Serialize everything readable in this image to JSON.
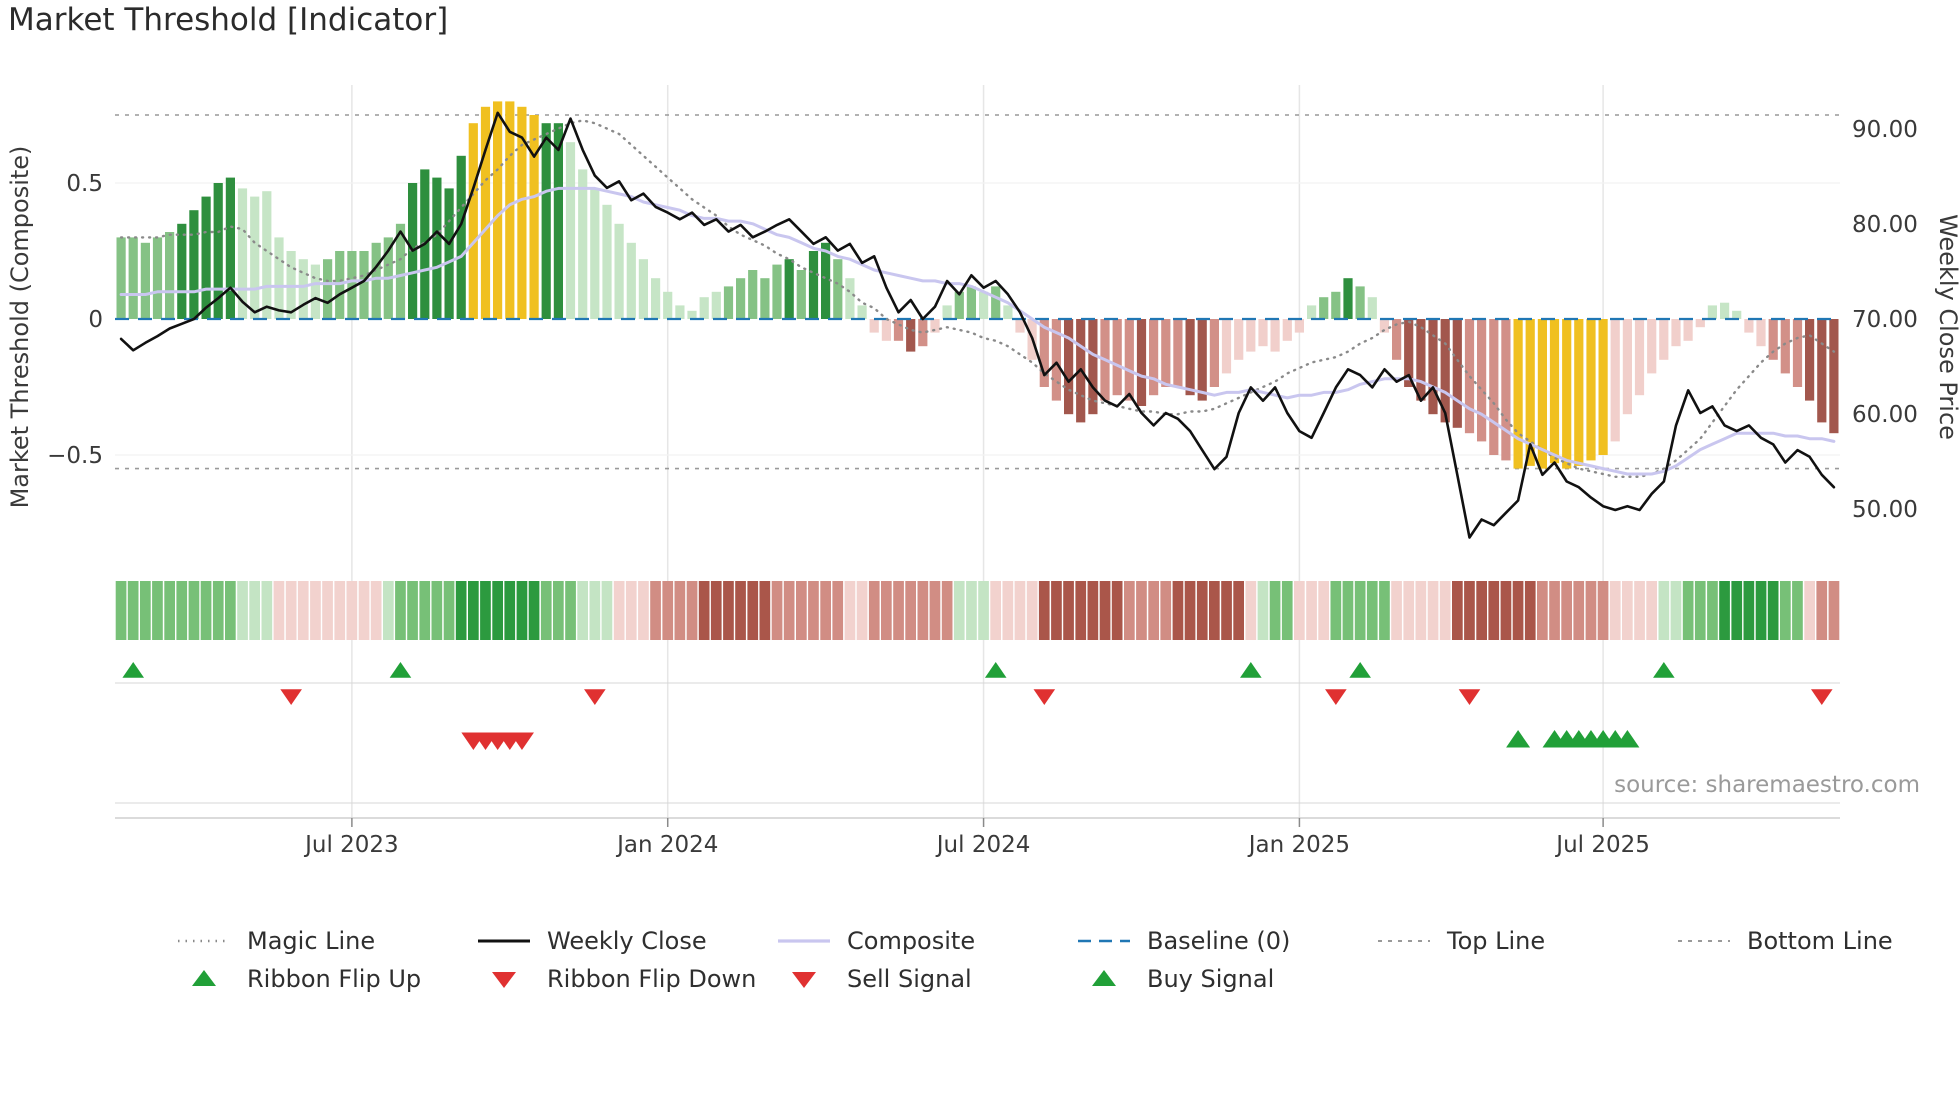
{
  "chart_data": {
    "type": "combo",
    "title": "Market Threshold [Indicator]",
    "source_note": "source: sharemaestro.com",
    "left_axis": {
      "label": "Market Threshold (Composite)",
      "tick_labels": [
        "0.5",
        "0",
        "−0.5"
      ],
      "tick_values": [
        0.5,
        0,
        -0.5
      ],
      "range": [
        -0.86,
        0.86
      ]
    },
    "right_axis": {
      "label": "Weekly Close Price",
      "tick_labels": [
        "90.00",
        "80.00",
        "70.00",
        "60.00",
        "50.00"
      ],
      "tick_values": [
        90,
        80,
        70,
        60,
        50
      ],
      "range": [
        43.6,
        94.6
      ]
    },
    "x_axis": {
      "tick_labels": [
        "Jul 2023",
        "Jan 2024",
        "Jul 2024",
        "Jan 2025",
        "Jul 2025"
      ],
      "tick_week_indices": [
        19,
        45,
        71,
        97,
        122
      ]
    },
    "threshold_lines": {
      "top_line": 0.75,
      "baseline": 0,
      "bottom_line": -0.55
    },
    "n_weeks": 142,
    "series": {
      "composite_bars": [
        0.3,
        0.3,
        0.28,
        0.3,
        0.32,
        0.35,
        0.4,
        0.45,
        0.5,
        0.52,
        0.48,
        0.45,
        0.47,
        0.3,
        0.25,
        0.22,
        0.2,
        0.22,
        0.25,
        0.25,
        0.25,
        0.28,
        0.3,
        0.35,
        0.5,
        0.55,
        0.52,
        0.48,
        0.6,
        0.72,
        0.78,
        0.8,
        0.8,
        0.78,
        0.75,
        0.72,
        0.72,
        0.65,
        0.55,
        0.48,
        0.42,
        0.35,
        0.28,
        0.22,
        0.15,
        0.1,
        0.05,
        0.03,
        0.08,
        0.1,
        0.12,
        0.15,
        0.18,
        0.15,
        0.2,
        0.22,
        0.18,
        0.25,
        0.28,
        0.22,
        0.15,
        0.05,
        -0.05,
        -0.08,
        -0.08,
        -0.12,
        -0.1,
        -0.05,
        0.05,
        0.1,
        0.12,
        0.1,
        0.12,
        0.05,
        -0.05,
        -0.15,
        -0.25,
        -0.3,
        -0.35,
        -0.38,
        -0.35,
        -0.3,
        -0.28,
        -0.3,
        -0.32,
        -0.28,
        -0.25,
        -0.25,
        -0.28,
        -0.3,
        -0.25,
        -0.2,
        -0.15,
        -0.12,
        -0.1,
        -0.12,
        -0.08,
        -0.05,
        0.05,
        0.08,
        0.1,
        0.15,
        0.12,
        0.08,
        -0.05,
        -0.15,
        -0.25,
        -0.3,
        -0.35,
        -0.38,
        -0.4,
        -0.42,
        -0.45,
        -0.5,
        -0.52,
        -0.55,
        -0.54,
        -0.55,
        -0.53,
        -0.55,
        -0.54,
        -0.52,
        -0.5,
        -0.45,
        -0.35,
        -0.28,
        -0.2,
        -0.15,
        -0.1,
        -0.08,
        -0.03,
        0.05,
        0.06,
        0.03,
        -0.05,
        -0.1,
        -0.15,
        -0.2,
        -0.25,
        -0.3,
        -0.38,
        -0.42
      ],
      "bar_shades": [
        2,
        2,
        2,
        2,
        2,
        3,
        3,
        3,
        3,
        3,
        1,
        1,
        1,
        1,
        1,
        1,
        1,
        2,
        2,
        2,
        2,
        2,
        2,
        2,
        3,
        3,
        3,
        3,
        3,
        0,
        0,
        0,
        0,
        0,
        0,
        3,
        3,
        1,
        1,
        1,
        1,
        1,
        1,
        1,
        1,
        1,
        1,
        1,
        1,
        1,
        2,
        2,
        2,
        2,
        2,
        3,
        2,
        3,
        3,
        2,
        1,
        1,
        1,
        1,
        2,
        3,
        2,
        1,
        1,
        2,
        2,
        1,
        2,
        1,
        1,
        1,
        2,
        2,
        3,
        3,
        3,
        2,
        2,
        2,
        3,
        2,
        2,
        2,
        3,
        3,
        2,
        1,
        1,
        1,
        1,
        1,
        1,
        1,
        1,
        2,
        2,
        3,
        2,
        1,
        1,
        2,
        3,
        3,
        3,
        3,
        3,
        2,
        2,
        2,
        2,
        0,
        0,
        0,
        0,
        0,
        0,
        0,
        0,
        1,
        1,
        1,
        1,
        1,
        1,
        1,
        1,
        1,
        1,
        1,
        1,
        1,
        2,
        2,
        2,
        3,
        3,
        3
      ],
      "bar_extreme_ranges": [
        [
          29,
          34
        ],
        [
          115,
          122
        ]
      ],
      "weekly_close": [
        67.9,
        66.7,
        67.5,
        68.2,
        69.0,
        69.5,
        70.0,
        71.2,
        72.2,
        73.3,
        71.8,
        70.7,
        71.3,
        70.9,
        70.7,
        71.5,
        72.2,
        71.7,
        72.6,
        73.3,
        74.0,
        75.5,
        77.2,
        79.2,
        77.2,
        77.9,
        79.2,
        77.9,
        80.0,
        83.8,
        87.8,
        91.7,
        89.7,
        89.1,
        87.1,
        89.1,
        87.8,
        91.1,
        87.8,
        85.1,
        83.8,
        84.5,
        82.5,
        83.2,
        81.8,
        81.2,
        80.5,
        81.2,
        79.9,
        80.5,
        79.2,
        79.9,
        78.6,
        79.2,
        79.9,
        80.5,
        79.2,
        77.9,
        78.6,
        77.2,
        77.9,
        75.9,
        76.6,
        73.3,
        70.7,
        72.0,
        70.0,
        71.3,
        74.0,
        72.6,
        74.6,
        73.3,
        74.0,
        72.6,
        70.7,
        68.0,
        64.1,
        65.4,
        63.4,
        64.7,
        62.8,
        61.4,
        60.8,
        62.1,
        60.1,
        58.8,
        60.1,
        59.5,
        58.2,
        56.2,
        54.2,
        55.5,
        60.1,
        62.8,
        61.4,
        62.8,
        60.1,
        58.2,
        57.5,
        60.1,
        62.8,
        64.7,
        64.1,
        62.8,
        64.7,
        63.4,
        64.1,
        61.4,
        62.8,
        60.1,
        53.6,
        47.0,
        48.9,
        48.3,
        49.6,
        50.9,
        56.8,
        53.6,
        54.9,
        52.9,
        52.3,
        51.2,
        50.3,
        49.9,
        50.3,
        49.9,
        51.6,
        52.9,
        58.8,
        62.5,
        60.1,
        60.8,
        58.8,
        58.2,
        58.8,
        57.5,
        56.8,
        54.9,
        56.2,
        55.5,
        53.6,
        52.3
      ],
      "composite_line": [
        0.09,
        0.09,
        0.09,
        0.1,
        0.1,
        0.1,
        0.1,
        0.11,
        0.11,
        0.11,
        0.11,
        0.11,
        0.12,
        0.12,
        0.12,
        0.12,
        0.13,
        0.13,
        0.13,
        0.14,
        0.14,
        0.15,
        0.15,
        0.16,
        0.17,
        0.18,
        0.19,
        0.21,
        0.23,
        0.28,
        0.33,
        0.38,
        0.42,
        0.44,
        0.45,
        0.47,
        0.48,
        0.48,
        0.48,
        0.48,
        0.47,
        0.46,
        0.45,
        0.43,
        0.42,
        0.41,
        0.4,
        0.38,
        0.37,
        0.37,
        0.36,
        0.36,
        0.35,
        0.33,
        0.31,
        0.3,
        0.28,
        0.26,
        0.25,
        0.23,
        0.22,
        0.2,
        0.18,
        0.17,
        0.16,
        0.15,
        0.14,
        0.14,
        0.13,
        0.13,
        0.12,
        0.1,
        0.08,
        0.06,
        0.03,
        0.0,
        -0.03,
        -0.05,
        -0.07,
        -0.1,
        -0.13,
        -0.15,
        -0.17,
        -0.19,
        -0.21,
        -0.22,
        -0.24,
        -0.25,
        -0.26,
        -0.27,
        -0.28,
        -0.27,
        -0.27,
        -0.26,
        -0.27,
        -0.28,
        -0.29,
        -0.28,
        -0.28,
        -0.27,
        -0.27,
        -0.26,
        -0.24,
        -0.23,
        -0.22,
        -0.22,
        -0.22,
        -0.23,
        -0.25,
        -0.27,
        -0.3,
        -0.33,
        -0.35,
        -0.38,
        -0.41,
        -0.44,
        -0.46,
        -0.48,
        -0.5,
        -0.52,
        -0.53,
        -0.54,
        -0.55,
        -0.56,
        -0.57,
        -0.57,
        -0.57,
        -0.56,
        -0.54,
        -0.51,
        -0.48,
        -0.46,
        -0.44,
        -0.42,
        -0.42,
        -0.42,
        -0.42,
        -0.43,
        -0.43,
        -0.44,
        -0.44,
        -0.45
      ],
      "magic_line": [
        0.3,
        0.3,
        0.3,
        0.3,
        0.31,
        0.31,
        0.31,
        0.32,
        0.32,
        0.34,
        0.33,
        0.28,
        0.25,
        0.22,
        0.19,
        0.17,
        0.15,
        0.14,
        0.14,
        0.15,
        0.16,
        0.18,
        0.2,
        0.22,
        0.26,
        0.28,
        0.31,
        0.36,
        0.41,
        0.46,
        0.51,
        0.55,
        0.6,
        0.64,
        0.66,
        0.68,
        0.7,
        0.72,
        0.73,
        0.72,
        0.7,
        0.68,
        0.64,
        0.6,
        0.56,
        0.52,
        0.48,
        0.44,
        0.41,
        0.38,
        0.34,
        0.31,
        0.29,
        0.27,
        0.24,
        0.22,
        0.19,
        0.17,
        0.15,
        0.13,
        0.1,
        0.06,
        0.04,
        0.0,
        -0.02,
        -0.04,
        -0.05,
        -0.04,
        -0.03,
        -0.04,
        -0.05,
        -0.07,
        -0.08,
        -0.1,
        -0.13,
        -0.16,
        -0.2,
        -0.23,
        -0.26,
        -0.28,
        -0.3,
        -0.31,
        -0.32,
        -0.33,
        -0.34,
        -0.34,
        -0.35,
        -0.35,
        -0.34,
        -0.34,
        -0.33,
        -0.31,
        -0.29,
        -0.27,
        -0.25,
        -0.23,
        -0.2,
        -0.18,
        -0.16,
        -0.15,
        -0.14,
        -0.12,
        -0.09,
        -0.07,
        -0.04,
        -0.02,
        -0.01,
        -0.03,
        -0.06,
        -0.09,
        -0.15,
        -0.21,
        -0.26,
        -0.31,
        -0.37,
        -0.42,
        -0.45,
        -0.48,
        -0.51,
        -0.53,
        -0.55,
        -0.56,
        -0.57,
        -0.58,
        -0.58,
        -0.58,
        -0.57,
        -0.55,
        -0.52,
        -0.48,
        -0.44,
        -0.38,
        -0.32,
        -0.26,
        -0.21,
        -0.16,
        -0.12,
        -0.09,
        -0.07,
        -0.06,
        -0.09,
        -0.12
      ]
    },
    "ribbon": [
      2,
      2,
      2,
      2,
      2,
      2,
      2,
      2,
      2,
      2,
      1,
      1,
      1,
      -1,
      -1,
      -1,
      -1,
      -1,
      -1,
      -1,
      -1,
      -1,
      1,
      2,
      2,
      2,
      2,
      2,
      3,
      3,
      3,
      3,
      3,
      3,
      3,
      2,
      2,
      2,
      1,
      1,
      1,
      -1,
      -1,
      -1,
      -2,
      -2,
      -2,
      -2,
      -3,
      -3,
      -3,
      -3,
      -3,
      -3,
      -2,
      -2,
      -2,
      -2,
      -2,
      -2,
      -1,
      -1,
      -2,
      -2,
      -2,
      -2,
      -2,
      -2,
      -2,
      1,
      1,
      1,
      -1,
      -1,
      -1,
      -1,
      -3,
      -3,
      -3,
      -3,
      -3,
      -3,
      -3,
      -2,
      -2,
      -2,
      -2,
      -3,
      -3,
      -3,
      -3,
      -3,
      -3,
      -1,
      1,
      2,
      2,
      -1,
      -1,
      -1,
      2,
      2,
      2,
      2,
      2,
      -1,
      -1,
      -1,
      -1,
      -1,
      -3,
      -3,
      -3,
      -3,
      -3,
      -3,
      -3,
      -2,
      -2,
      -2,
      -2,
      -2,
      -2,
      -1,
      -1,
      -1,
      -1,
      1,
      1,
      2,
      2,
      2,
      3,
      3,
      3,
      3,
      3,
      2,
      2,
      -1,
      -2,
      -2
    ],
    "signals": {
      "ribbon_flip_up": [
        1,
        23,
        72,
        93,
        102,
        127
      ],
      "ribbon_flip_down": [
        14,
        39,
        76,
        100,
        111,
        140
      ],
      "sell": [
        29,
        30,
        31,
        32,
        33
      ],
      "buy": [
        115,
        118,
        119,
        120,
        121,
        122,
        123,
        124
      ]
    },
    "colors": {
      "bar_green": {
        "light": "#c6e5c6",
        "medium": "#85c285",
        "dark": "#2e8f3e"
      },
      "bar_red": {
        "light": "#f1cfcb",
        "medium": "#d29088",
        "dark": "#a2574d"
      },
      "bar_extreme": "#f0c020",
      "ribbon_green": {
        "light": "#c4e4c4",
        "medium": "#77c077",
        "dark": "#2c9a3f"
      },
      "ribbon_red": {
        "light": "#f2d2ce",
        "medium": "#d18d84",
        "dark": "#aa564a"
      },
      "weekly_close": "#111111",
      "composite_line": "#c9c6ef",
      "magic_line": "#8a8a8a",
      "baseline": "#2077b4",
      "threshold": "#999999",
      "signal_green": "#21a038",
      "signal_red": "#e03131",
      "grid": "#e6e6e6",
      "axis_text": "#3a3a3a",
      "source_text": "#9a9a9a"
    }
  },
  "legend": {
    "rows": [
      [
        {
          "label": "Magic Line",
          "swatch": "line-dotted-gray"
        },
        {
          "label": "Weekly Close",
          "swatch": "line-solid-black"
        },
        {
          "label": "Composite",
          "swatch": "line-solid-lavender"
        },
        {
          "label": "Baseline (0)",
          "swatch": "line-dashed-blue"
        },
        {
          "label": "Top Line",
          "swatch": "line-dashed-gray"
        },
        {
          "label": "Bottom Line",
          "swatch": "line-dashed-gray"
        }
      ],
      [
        {
          "label": "Ribbon Flip Up",
          "swatch": "triangle-up-green"
        },
        {
          "label": "Ribbon Flip Down",
          "swatch": "triangle-down-red"
        },
        {
          "label": "Sell Signal",
          "swatch": "triangle-down-red"
        },
        {
          "label": "Buy Signal",
          "swatch": "triangle-up-green"
        }
      ]
    ]
  }
}
